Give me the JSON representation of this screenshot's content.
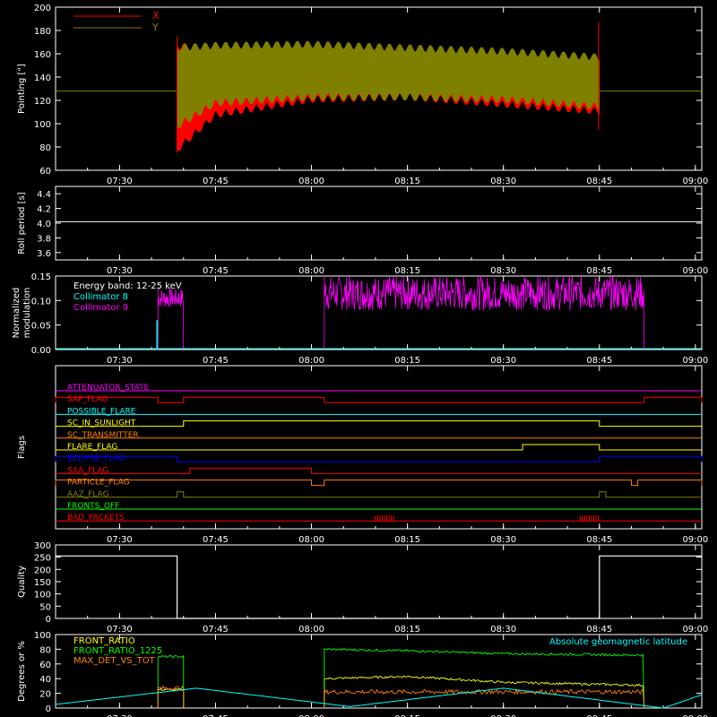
{
  "colors": {
    "background": "#000000",
    "axes": "#ffffff",
    "red": "#ff0000",
    "olive": "#808000",
    "white": "#ffffff",
    "cyan": "#00ffff",
    "magenta": "#ff00ff",
    "yellow": "#ffff00",
    "orange": "#ff8000",
    "green": "#00ff00",
    "blue": "#0000ff"
  },
  "time_ticks": [
    "07:30",
    "07:45",
    "08:00",
    "08:15",
    "08:30",
    "08:45",
    "09:00"
  ],
  "chart_data": [
    {
      "type": "line",
      "ylabel": "Pointing [\"]",
      "ylim": [
        60,
        200
      ],
      "yticks": [
        "60",
        "80",
        "100",
        "120",
        "140",
        "160",
        "180",
        "200"
      ],
      "xlim": [
        "07:20",
        "09:01"
      ],
      "legend_position": "top-left",
      "baseline": 128,
      "series": [
        {
          "name": "X",
          "color": "red",
          "x": [
            "07:39",
            "07:45",
            "08:00",
            "08:15",
            "08:30",
            "08:45"
          ],
          "min": [
            75,
            105,
            118,
            120,
            114,
            108
          ],
          "max": [
            170,
            165,
            170,
            165,
            160,
            155
          ]
        },
        {
          "name": "Y",
          "color": "olive",
          "x": [
            "07:39",
            "07:45",
            "08:00",
            "08:15",
            "08:30",
            "08:45"
          ],
          "min": [
            95,
            115,
            120,
            120,
            118,
            112
          ],
          "max": [
            168,
            170,
            171,
            168,
            165,
            160
          ]
        }
      ]
    },
    {
      "type": "line",
      "ylabel": "Roll period [s]",
      "ylim": [
        3.5,
        4.5
      ],
      "yticks": [
        "3.6",
        "3.8",
        "4.0",
        "4.2",
        "4.4"
      ],
      "series": [
        {
          "color": "white",
          "x": [
            "07:20",
            "09:01"
          ],
          "y": [
            4.02,
            4.02
          ]
        }
      ]
    },
    {
      "type": "line",
      "ylabel": "Normalized modulation",
      "ylim": [
        0,
        0.15
      ],
      "yticks": [
        "0.00",
        "0.05",
        "0.10",
        "0.15"
      ],
      "annotations": [
        "Energy band: 12-25 keV"
      ],
      "series": [
        {
          "name": "Collimator 8",
          "color": "cyan",
          "x": [
            "07:36",
            "07:36"
          ],
          "y": [
            0.0,
            0.06
          ]
        },
        {
          "name": "Collimator 9",
          "color": "magenta",
          "segments": [
            {
              "start": "07:36",
              "end": "07:40",
              "low": 0.085,
              "high": 0.125
            },
            {
              "start": "08:02",
              "end": "08:52",
              "low": 0.08,
              "high": 0.15
            }
          ]
        }
      ]
    },
    {
      "type": "table",
      "ylabel": "Flags",
      "flags": [
        {
          "name": "ATTENUATOR_STATE",
          "color": "magenta",
          "high": []
        },
        {
          "name": "SAP_FLAG",
          "color": "red",
          "high": [
            [
              "07:20",
              "07:36"
            ],
            [
              "07:40",
              "08:02"
            ],
            [
              "08:52",
              "09:01"
            ]
          ]
        },
        {
          "name": "POSSIBLE_FLARE",
          "color": "cyan",
          "high": []
        },
        {
          "name": "SC_IN_SUNLIGHT",
          "color": "yellow",
          "high": [
            [
              "07:40",
              "08:45"
            ]
          ]
        },
        {
          "name": "SC_TRANSMITTER",
          "color": "orange",
          "high": []
        },
        {
          "name": "FLARE_FLAG",
          "color": "yellow",
          "high": [
            [
              "08:33",
              "08:45"
            ]
          ]
        },
        {
          "name": "ECLIPSE_FLAG",
          "color": "blue",
          "high": [
            [
              "07:20",
              "07:39"
            ],
            [
              "08:45",
              "09:01"
            ]
          ]
        },
        {
          "name": "SAA_FLAG",
          "color": "red",
          "high": [
            [
              "07:41",
              "08:00"
            ]
          ]
        },
        {
          "name": "PARTICLE_FLAG",
          "color": "orange",
          "high": [
            [
              "07:20",
              "08:00"
            ],
            [
              "08:02",
              "08:50"
            ],
            [
              "08:51",
              "09:01"
            ]
          ]
        },
        {
          "name": "AAZ_FLAG",
          "color": "olive",
          "high": [
            [
              "07:39",
              "07:40"
            ],
            [
              "08:45",
              "08:46"
            ]
          ]
        },
        {
          "name": "FRONTS_OFF",
          "color": "green",
          "high": []
        },
        {
          "name": "BAD_PACKETS",
          "color": "red",
          "high": [
            [
              "08:10",
              "08:13"
            ],
            [
              "08:42",
              "08:45"
            ]
          ]
        }
      ]
    },
    {
      "type": "line",
      "ylabel": "Quality",
      "ylim": [
        0,
        300
      ],
      "yticks": [
        "0",
        "50",
        "100",
        "150",
        "200",
        "250",
        "300"
      ],
      "series": [
        {
          "color": "white",
          "x": [
            "07:20",
            "07:39",
            "07:39",
            "08:45",
            "08:45",
            "09:01"
          ],
          "y": [
            255,
            255,
            0,
            0,
            255,
            255
          ]
        }
      ]
    },
    {
      "type": "line",
      "ylabel": "Degrees or %",
      "ylim": [
        0,
        100
      ],
      "yticks": [
        "0",
        "20",
        "40",
        "60",
        "80",
        "100"
      ],
      "series": [
        {
          "name": "FRONT_RATIO",
          "color": "yellow",
          "x": [
            "07:36",
            "07:40",
            "08:02",
            "08:15",
            "08:30",
            "08:52"
          ],
          "y": [
            25,
            25,
            40,
            43,
            35,
            31
          ]
        },
        {
          "name": "FRONT_RATIO_1225",
          "color": "green",
          "x": [
            "07:36",
            "07:40",
            "08:02",
            "08:15",
            "08:30",
            "08:52"
          ],
          "y": [
            70,
            70,
            80,
            78,
            74,
            72
          ]
        },
        {
          "name": "MAX_DET_VS_TOT",
          "color": "orange",
          "x": [
            "07:36",
            "07:40",
            "08:02",
            "08:15",
            "08:30",
            "08:52"
          ],
          "y": [
            27,
            27,
            22,
            22,
            22,
            22
          ]
        },
        {
          "name": "Absolute geomagnetic latitude",
          "color": "cyan",
          "x": [
            "07:20",
            "07:42",
            "08:06",
            "08:30",
            "08:55",
            "09:01"
          ],
          "y": [
            5,
            27,
            2,
            27,
            0,
            18
          ]
        }
      ]
    }
  ]
}
